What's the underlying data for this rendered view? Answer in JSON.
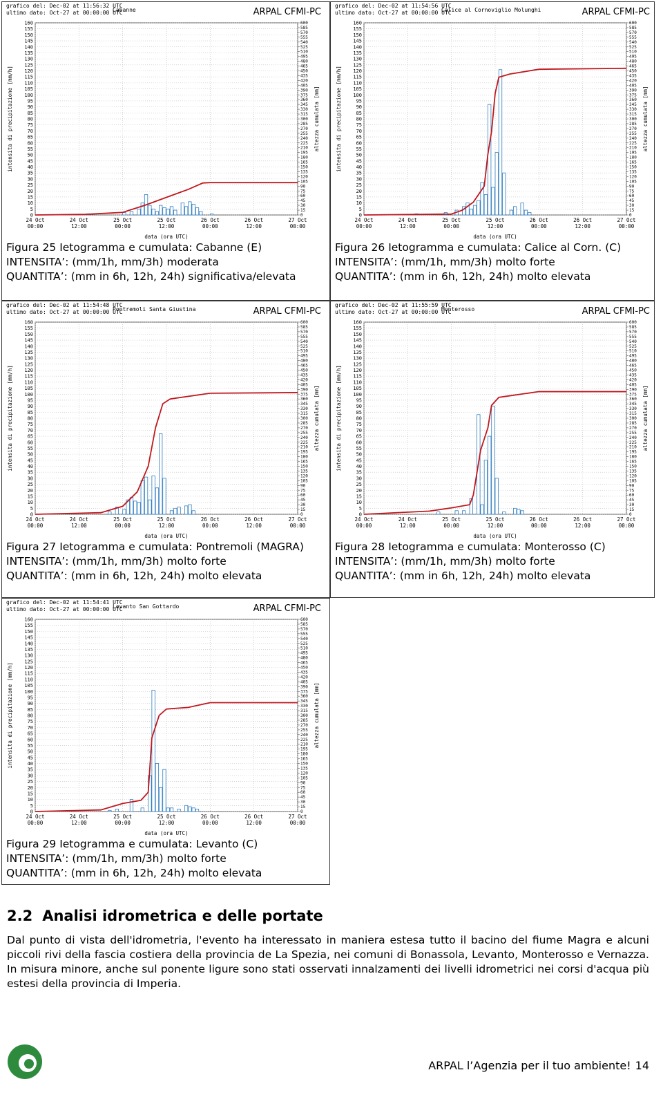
{
  "chart_data": [
    {
      "type": "bar-line",
      "title": "Cabanne",
      "updated": "grafico del: Dec-02 at 11:56:32 UTC",
      "last_data": "ultimo dato: Oct-27 at 00:00:00 UTC",
      "brand": "ARPAL CFMI-PC",
      "y_label": "intensita di precipitazione [mm/h]",
      "y2_label": "altezza cumulata [mm]",
      "x_label": "data (ora UTC)",
      "xlim": [
        "24 Oct 00:00",
        "27 Oct 00:00"
      ],
      "xticks": [
        "24 Oct 00:00",
        "24 Oct 12:00",
        "25 Oct 00:00",
        "25 Oct 12:00",
        "26 Oct 00:00",
        "26 Oct 12:00",
        "27 Oct 00:00"
      ],
      "ylim": [
        0,
        160
      ],
      "yticks": [
        0,
        5,
        10,
        15,
        20,
        25,
        30,
        35,
        40,
        45,
        50,
        55,
        60,
        65,
        70,
        75,
        80,
        85,
        90,
        95,
        100,
        105,
        110,
        115,
        120,
        125,
        130,
        135,
        140,
        145,
        150,
        155,
        160
      ],
      "y2lim": [
        0,
        600
      ],
      "y2ticks": [
        0,
        15,
        30,
        45,
        60,
        75,
        90,
        105,
        120,
        135,
        150,
        165,
        180,
        195,
        210,
        225,
        240,
        255,
        270,
        285,
        300,
        315,
        330,
        345,
        360,
        375,
        390,
        405,
        420,
        435,
        450,
        465,
        480,
        495,
        510,
        525,
        540,
        555,
        570,
        585,
        600
      ],
      "grid": true,
      "series": [
        {
          "color": "#2f7dbf",
          "x": [
            "24 Oct 14:00",
            "25 Oct 00:00",
            "25 Oct 02:00",
            "25 Oct 04:00",
            "25 Oct 05:00",
            "25 Oct 06:00",
            "25 Oct 07:00",
            "25 Oct 08:00",
            "25 Oct 09:00",
            "25 Oct 10:00",
            "25 Oct 11:00",
            "25 Oct 12:00",
            "25 Oct 13:00",
            "25 Oct 14:00",
            "25 Oct 16:00",
            "25 Oct 17:00",
            "25 Oct 18:00",
            "25 Oct 19:00",
            "25 Oct 20:00",
            "25 Oct 21:00",
            "26 Oct 00:00"
          ],
          "values": [
            1,
            2,
            3,
            5,
            10,
            17,
            8,
            5,
            3,
            8,
            6,
            5,
            7,
            4,
            10,
            7,
            11,
            9,
            6,
            3,
            1
          ]
        },
        {
          "color": "#c0181e",
          "axis": "y2",
          "x": [
            "24 Oct 00:00",
            "24 Oct 14:00",
            "25 Oct 00:00",
            "25 Oct 06:00",
            "25 Oct 12:00",
            "25 Oct 18:00",
            "25 Oct 22:00",
            "26 Oct 00:00",
            "27 Oct 00:00"
          ],
          "values": [
            0,
            2,
            8,
            30,
            55,
            80,
            100,
            101,
            101
          ]
        }
      ]
    },
    {
      "type": "bar-line",
      "title": "Calice al Cornoviglio Molunghi",
      "updated": "grafico del: Dec-02 at 11:54:56 UTC",
      "last_data": "ultimo dato: Oct-27 at 00:00:00 UTC",
      "brand": "ARPAL CFMI-PC",
      "y_label": "intensita di precipitazione [mm/h]",
      "y2_label": "altezza cumulata [mm]",
      "x_label": "data (ora UTC)",
      "xlim": [
        "24 Oct 00:00",
        "27 Oct 00:00"
      ],
      "xticks": [
        "24 Oct 00:00",
        "24 Oct 12:00",
        "25 Oct 00:00",
        "25 Oct 12:00",
        "26 Oct 00:00",
        "26 Oct 12:00",
        "27 Oct 00:00"
      ],
      "ylim": [
        0,
        160
      ],
      "yticks": [
        0,
        5,
        10,
        15,
        20,
        25,
        30,
        35,
        40,
        45,
        50,
        55,
        60,
        65,
        70,
        75,
        80,
        85,
        90,
        95,
        100,
        105,
        110,
        115,
        120,
        125,
        130,
        135,
        140,
        145,
        150,
        155,
        160
      ],
      "y2lim": [
        0,
        600
      ],
      "y2ticks": [
        0,
        15,
        30,
        45,
        60,
        75,
        90,
        105,
        120,
        135,
        150,
        165,
        180,
        195,
        210,
        225,
        240,
        255,
        270,
        285,
        300,
        315,
        330,
        345,
        360,
        375,
        390,
        405,
        420,
        435,
        450,
        465,
        480,
        495,
        510,
        525,
        540,
        555,
        570,
        585,
        600
      ],
      "grid": true,
      "series": [
        {
          "color": "#2f7dbf",
          "x": [
            "24 Oct 14:00",
            "24 Oct 22:00",
            "25 Oct 01:00",
            "25 Oct 03:00",
            "25 Oct 04:00",
            "25 Oct 05:00",
            "25 Oct 06:00",
            "25 Oct 07:00",
            "25 Oct 08:00",
            "25 Oct 09:00",
            "25 Oct 10:00",
            "25 Oct 11:00",
            "25 Oct 12:00",
            "25 Oct 13:00",
            "25 Oct 14:00",
            "25 Oct 16:00",
            "25 Oct 17:00",
            "25 Oct 19:00",
            "25 Oct 20:00",
            "25 Oct 21:00"
          ],
          "values": [
            1,
            2,
            4,
            7,
            10,
            5,
            8,
            12,
            27,
            17,
            92,
            23,
            52,
            121,
            35,
            4,
            7,
            10,
            4,
            2
          ]
        },
        {
          "color": "#c0181e",
          "axis": "y2",
          "x": [
            "24 Oct 00:00",
            "25 Oct 00:00",
            "25 Oct 03:00",
            "25 Oct 06:00",
            "25 Oct 09:00",
            "25 Oct 10:00",
            "25 Oct 11:00",
            "25 Oct 12:00",
            "25 Oct 13:00",
            "25 Oct 16:00",
            "26 Oct 00:00",
            "27 Oct 00:00"
          ],
          "values": [
            0,
            3,
            15,
            40,
            90,
            190,
            260,
            380,
            430,
            440,
            455,
            458
          ]
        }
      ]
    },
    {
      "type": "bar-line",
      "title": "Pontremoli Santa Giustina",
      "updated": "grafico del: Dec-02 at 11:54:48 UTC",
      "last_data": "ultimo dato: Oct-27 at 00:00:00 UTC",
      "brand": "ARPAL CFMI-PC",
      "y_label": "intensita di precipitazione [mm/h]",
      "y2_label": "altezza cumulata [mm]",
      "x_label": "data (ora UTC)",
      "xlim": [
        "24 Oct 00:00",
        "27 Oct 00:00"
      ],
      "xticks": [
        "24 Oct 00:00",
        "24 Oct 12:00",
        "25 Oct 00:00",
        "25 Oct 12:00",
        "26 Oct 00:00",
        "26 Oct 12:00",
        "27 Oct 00:00"
      ],
      "ylim": [
        0,
        160
      ],
      "yticks": [
        0,
        5,
        10,
        15,
        20,
        25,
        30,
        35,
        40,
        45,
        50,
        55,
        60,
        65,
        70,
        75,
        80,
        85,
        90,
        95,
        100,
        105,
        110,
        115,
        120,
        125,
        130,
        135,
        140,
        145,
        150,
        155,
        160
      ],
      "y2lim": [
        0,
        600
      ],
      "y2ticks": [
        0,
        15,
        30,
        45,
        60,
        75,
        90,
        105,
        120,
        135,
        150,
        165,
        180,
        195,
        210,
        225,
        240,
        255,
        270,
        285,
        300,
        315,
        330,
        345,
        360,
        375,
        390,
        405,
        420,
        435,
        450,
        465,
        480,
        495,
        510,
        525,
        540,
        555,
        570,
        585,
        600
      ],
      "grid": true,
      "series": [
        {
          "color": "#2f7dbf",
          "x": [
            "24 Oct 20:00",
            "24 Oct 22:00",
            "25 Oct 00:00",
            "25 Oct 01:00",
            "25 Oct 02:00",
            "25 Oct 03:00",
            "25 Oct 04:00",
            "25 Oct 05:00",
            "25 Oct 06:00",
            "25 Oct 07:00",
            "25 Oct 08:00",
            "25 Oct 09:00",
            "25 Oct 10:00",
            "25 Oct 11:00",
            "25 Oct 13:00",
            "25 Oct 14:00",
            "25 Oct 15:00",
            "25 Oct 17:00",
            "25 Oct 18:00",
            "25 Oct 19:00"
          ],
          "values": [
            2,
            6,
            4,
            12,
            14,
            11,
            10,
            28,
            31,
            12,
            32,
            22,
            67,
            30,
            3,
            5,
            6,
            7,
            8,
            3
          ]
        },
        {
          "color": "#c0181e",
          "axis": "y2",
          "x": [
            "24 Oct 00:00",
            "24 Oct 18:00",
            "25 Oct 00:00",
            "25 Oct 04:00",
            "25 Oct 07:00",
            "25 Oct 09:00",
            "25 Oct 11:00",
            "25 Oct 13:00",
            "26 Oct 00:00",
            "27 Oct 00:00"
          ],
          "values": [
            0,
            5,
            25,
            70,
            150,
            270,
            345,
            360,
            378,
            380
          ]
        }
      ]
    },
    {
      "type": "bar-line",
      "title": "Monterosso",
      "updated": "grafico del: Dec-02 at 11:55:59 UTC",
      "last_data": "ultimo dato: Oct-27 at 00:00:00 UTC",
      "brand": "ARPAL CFMI-PC",
      "y_label": "intensita di precipitazione [mm/h]",
      "y2_label": "altezza cumulata [mm]",
      "x_label": "data (ora UTC)",
      "xlim": [
        "24 Oct 00:00",
        "27 Oct 00:00"
      ],
      "xticks": [
        "24 Oct 00:00",
        "24 Oct 12:00",
        "25 Oct 00:00",
        "25 Oct 12:00",
        "26 Oct 00:00",
        "26 Oct 12:00",
        "27 Oct 00:00"
      ],
      "ylim": [
        0,
        160
      ],
      "yticks": [
        0,
        5,
        10,
        15,
        20,
        25,
        30,
        35,
        40,
        45,
        50,
        55,
        60,
        65,
        70,
        75,
        80,
        85,
        90,
        95,
        100,
        105,
        110,
        115,
        120,
        125,
        130,
        135,
        140,
        145,
        150,
        155,
        160
      ],
      "y2lim": [
        0,
        600
      ],
      "y2ticks": [
        0,
        15,
        30,
        45,
        60,
        75,
        90,
        105,
        120,
        135,
        150,
        165,
        180,
        195,
        210,
        225,
        240,
        255,
        270,
        285,
        300,
        315,
        330,
        345,
        360,
        375,
        390,
        405,
        420,
        435,
        450,
        465,
        480,
        495,
        510,
        525,
        540,
        555,
        570,
        585,
        600
      ],
      "grid": true,
      "series": [
        {
          "color": "#2f7dbf",
          "x": [
            "24 Oct 20:00",
            "25 Oct 01:00",
            "25 Oct 03:00",
            "25 Oct 05:00",
            "25 Oct 07:00",
            "25 Oct 08:00",
            "25 Oct 09:00",
            "25 Oct 10:00",
            "25 Oct 11:00",
            "25 Oct 12:00",
            "25 Oct 14:00",
            "25 Oct 17:00",
            "25 Oct 18:00",
            "25 Oct 19:00"
          ],
          "values": [
            2,
            3,
            3,
            13,
            83,
            8,
            45,
            65,
            90,
            30,
            2,
            5,
            4,
            3
          ]
        },
        {
          "color": "#c0181e",
          "axis": "y2",
          "x": [
            "24 Oct 00:00",
            "24 Oct 18:00",
            "25 Oct 00:00",
            "25 Oct 05:00",
            "25 Oct 06:00",
            "25 Oct 08:00",
            "25 Oct 10:00",
            "25 Oct 11:00",
            "25 Oct 13:00",
            "25 Oct 16:00",
            "26 Oct 00:00",
            "27 Oct 00:00"
          ],
          "values": [
            0,
            10,
            20,
            30,
            60,
            200,
            270,
            340,
            365,
            370,
            383,
            383
          ]
        }
      ]
    },
    {
      "type": "bar-line",
      "title": "Levanto San Gottardo",
      "updated": "grafico del: Dec-02 at 11:54:41 UTC",
      "last_data": "ultimo dato: Oct-27 at 00:00:00 UTC",
      "brand": "ARPAL CFMI-PC",
      "y_label": "intensita di precipitazione [mm/h]",
      "y2_label": "altezza cumulata [mm]",
      "x_label": "data (ora UTC)",
      "xlim": [
        "24 Oct 00:00",
        "27 Oct 00:00"
      ],
      "xticks": [
        "24 Oct 00:00",
        "24 Oct 12:00",
        "25 Oct 00:00",
        "25 Oct 12:00",
        "26 Oct 00:00",
        "26 Oct 12:00",
        "27 Oct 00:00"
      ],
      "ylim": [
        0,
        160
      ],
      "yticks": [
        0,
        5,
        10,
        15,
        20,
        25,
        30,
        35,
        40,
        45,
        50,
        55,
        60,
        65,
        70,
        75,
        80,
        85,
        90,
        95,
        100,
        105,
        110,
        115,
        120,
        125,
        130,
        135,
        140,
        145,
        150,
        155,
        160
      ],
      "y2lim": [
        0,
        600
      ],
      "y2ticks": [
        0,
        15,
        30,
        45,
        60,
        75,
        90,
        105,
        120,
        135,
        150,
        165,
        180,
        195,
        210,
        225,
        240,
        255,
        270,
        285,
        300,
        315,
        330,
        345,
        360,
        375,
        390,
        405,
        420,
        435,
        450,
        465,
        480,
        495,
        510,
        525,
        540,
        555,
        570,
        585,
        600
      ],
      "grid": true,
      "series": [
        {
          "color": "#2f7dbf",
          "x": [
            "24 Oct 20:00",
            "24 Oct 22:00",
            "25 Oct 02:00",
            "25 Oct 05:00",
            "25 Oct 07:00",
            "25 Oct 08:00",
            "25 Oct 09:00",
            "25 Oct 10:00",
            "25 Oct 11:00",
            "25 Oct 12:00",
            "25 Oct 13:00",
            "25 Oct 15:00",
            "25 Oct 17:00",
            "25 Oct 18:00",
            "25 Oct 19:00",
            "25 Oct 20:00"
          ],
          "values": [
            1,
            2,
            10,
            3,
            30,
            101,
            40,
            20,
            35,
            3,
            3,
            2,
            5,
            4,
            3,
            2
          ]
        },
        {
          "color": "#c0181e",
          "axis": "y2",
          "x": [
            "24 Oct 00:00",
            "24 Oct 18:00",
            "25 Oct 00:00",
            "25 Oct 05:00",
            "25 Oct 07:00",
            "25 Oct 08:00",
            "25 Oct 10:00",
            "25 Oct 12:00",
            "25 Oct 18:00",
            "26 Oct 00:00",
            "27 Oct 00:00"
          ],
          "values": [
            0,
            5,
            25,
            35,
            60,
            230,
            300,
            320,
            325,
            340,
            340
          ]
        }
      ]
    }
  ],
  "figures": [
    {
      "lines": [
        "Figura 25 Ietogramma e cumulata: Cabanne (E)",
        "INTENSITA’: (mm/1h, mm/3h) moderata",
        "QUANTITA’: (mm in 6h, 12h, 24h) significativa/elevata"
      ]
    },
    {
      "lines": [
        "Figura 26 Ietogramma e cumulata: Calice al Corn. (C)",
        "INTENSITA’: (mm/1h, mm/3h) molto forte",
        "QUANTITA’: (mm in 6h, 12h, 24h) molto elevata"
      ]
    },
    {
      "lines": [
        "Figura 27 Ietogramma e cumulata: Pontremoli (MAGRA)",
        "INTENSITA’: (mm/1h, mm/3h) molto forte",
        "QUANTITA’: (mm in 6h, 12h, 24h) molto elevata"
      ]
    },
    {
      "lines": [
        "Figura 28 Ietogramma e cumulata: Monterosso (C)",
        "INTENSITA’: (mm/1h, mm/3h) molto forte",
        "QUANTITA’: (mm in 6h, 12h, 24h) molto elevata"
      ]
    },
    {
      "lines": [
        "Figura 29 Ietogramma e cumulata: Levanto (C)",
        "INTENSITA’: (mm/1h, mm/3h) molto forte",
        "QUANTITA’: (mm in 6h, 12h, 24h) molto elevata"
      ]
    }
  ],
  "section": {
    "number": "2.2",
    "title": "Analisi idrometrica e delle portate"
  },
  "paragraph": "Dal punto di vista dell'idrometria, l'evento ha interessato in maniera estesa tutto il bacino del fiume Magra e alcuni piccoli rivi della fascia costiera della provincia de La Spezia, nei comuni di Bonassola, Levanto, Monterosso e Vernazza. In misura minore, anche sul ponente ligure sono stati osservati innalzamenti dei livelli idrometrici nei corsi d'acqua più estesi della provincia di Imperia.",
  "footer": {
    "text": "ARPAL l’Agenzia per il tuo ambiente!",
    "page": 14
  }
}
